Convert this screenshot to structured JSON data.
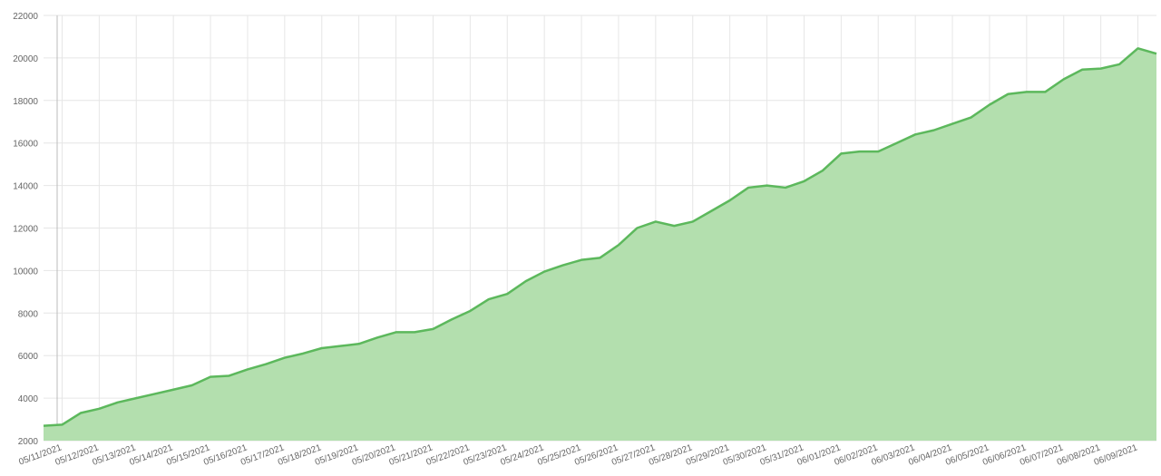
{
  "chart_data": {
    "type": "area",
    "categories": [
      null,
      "05/11/2021",
      null,
      "05/12/2021",
      null,
      "05/13/2021",
      null,
      "05/14/2021",
      null,
      "05/15/2021",
      null,
      "05/16/2021",
      null,
      "05/17/2021",
      null,
      "05/18/2021",
      null,
      "05/19/2021",
      null,
      "05/20/2021",
      null,
      "05/21/2021",
      null,
      "05/22/2021",
      null,
      "05/23/2021",
      null,
      "05/24/2021",
      null,
      "05/25/2021",
      null,
      "05/26/2021",
      null,
      "05/27/2021",
      null,
      "05/28/2021",
      null,
      "05/29/2021",
      null,
      "05/30/2021",
      null,
      "05/31/2021",
      null,
      "06/01/2021",
      null,
      "06/02/2021",
      null,
      "06/03/2021",
      null,
      "06/04/2021",
      null,
      "06/05/2021",
      null,
      "06/06/2021",
      null,
      "06/07/2021",
      null,
      "06/08/2021",
      null,
      "06/09/2021",
      null
    ],
    "values": [
      2700,
      2750,
      3300,
      3500,
      3800,
      4000,
      4200,
      4400,
      4600,
      5000,
      5050,
      5350,
      5600,
      5900,
      6100,
      6350,
      6450,
      6550,
      6850,
      7100,
      7100,
      7250,
      7700,
      8100,
      8650,
      8900,
      9500,
      9950,
      10250,
      10500,
      10600,
      11200,
      12000,
      12300,
      12100,
      12300,
      12800,
      13300,
      13900,
      14000,
      13900,
      14200,
      14700,
      15500,
      15600,
      15600,
      16000,
      16400,
      16600,
      16900,
      17200,
      17800,
      18300,
      18400,
      18400,
      19000,
      19450,
      19500,
      19700,
      20450,
      20200
    ],
    "color": "#5cb85c",
    "fill_color": "#b3dfae",
    "ylim": [
      2000,
      22000
    ],
    "yticks": [
      2000,
      4000,
      6000,
      8000,
      10000,
      12000,
      14000,
      16000,
      18000,
      20000,
      22000
    ],
    "grid": true
  }
}
